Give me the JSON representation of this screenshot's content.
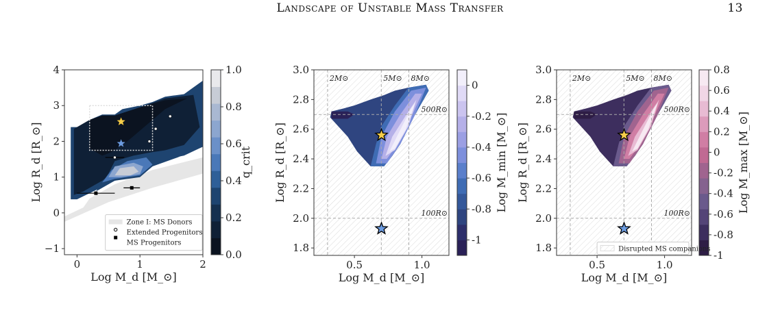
{
  "header": {
    "title": "Landscape of Unstable Mass Transfer",
    "page_number": "13"
  },
  "chart_data": [
    {
      "type": "contour",
      "xlabel": "Log M_d [M_⊙]",
      "ylabel": "Log R_d [R_⊙]",
      "xlim": [
        -0.2,
        2.0
      ],
      "ylim": [
        -1.17,
        4.0
      ],
      "xticks": [
        "0",
        "1",
        "2"
      ],
      "yticks": [
        "−1",
        "0",
        "1",
        "2",
        "3",
        "4"
      ],
      "colorbar": {
        "label": "q_crit",
        "ticks": [
          "0.0",
          "0.2",
          "0.4",
          "0.6",
          "0.8",
          "1.0"
        ],
        "range": [
          0.0,
          1.0
        ],
        "colors": [
          "#0b1320",
          "#0f2036",
          "#15304f",
          "#1e4470",
          "#2f5f98",
          "#4a78b8",
          "#6b90c8",
          "#8ca6cf",
          "#a9b8d2",
          "#c7ccd6",
          "#e9e9ec"
        ]
      },
      "legend": {
        "placement": "lower-right",
        "items": [
          "Zone I: MS Donors",
          "Extended Progenitors",
          "MS Progenitors"
        ]
      },
      "extended_progenitors": [
        {
          "x": 0.6,
          "y": 1.55,
          "xerr": 0.15
        },
        {
          "x": 1.15,
          "y": 2.0
        },
        {
          "x": 1.25,
          "y": 2.35
        },
        {
          "x": 1.48,
          "y": 2.7
        }
      ],
      "ms_progenitors": [
        {
          "x": 0.3,
          "y": 0.55,
          "xerr": 0.3
        },
        {
          "x": 0.87,
          "y": 0.7,
          "xerr": 0.13
        }
      ],
      "stars": [
        {
          "x": 0.7,
          "y": 2.55,
          "color": "#f5cd4a"
        },
        {
          "x": 0.7,
          "y": 1.94,
          "color": "#6b9be0"
        }
      ],
      "dotted_box": {
        "x": [
          0.2,
          1.2
        ],
        "y": [
          1.75,
          3.0
        ]
      }
    },
    {
      "type": "contour",
      "xlabel": "Log M_d [M_⊙]",
      "ylabel": "Log R_d [R_⊙]",
      "xlim": [
        0.2,
        1.2
      ],
      "ylim": [
        1.75,
        3.0
      ],
      "xticks": [
        "0.5",
        "1.0"
      ],
      "yticks": [
        "1.8",
        "2.0",
        "2.2",
        "2.4",
        "2.6",
        "2.8",
        "3.0"
      ],
      "colorbar": {
        "label": "Log M_min [M_⊙]",
        "ticks": [
          "-1",
          "-0.8",
          "-0.6",
          "-0.4",
          "-0.2",
          "0"
        ],
        "range": [
          -1.1,
          0.1
        ],
        "colors": [
          "#2a2157",
          "#2d2f6b",
          "#2f4580",
          "#34589a",
          "#3f6cb4",
          "#5a7fcb",
          "#7d8fdc",
          "#9b9fe3",
          "#b5b0e8",
          "#cbc4ef",
          "#e0daf6",
          "#f2effb"
        ]
      },
      "reference_lines": {
        "vertical": [
          {
            "x": 0.301,
            "label": "2M⊙"
          },
          {
            "x": 0.699,
            "label": "5M⊙"
          },
          {
            "x": 0.903,
            "label": "8M⊙"
          }
        ],
        "horizontal": [
          {
            "y": 2.699,
            "label": "500R⊙"
          },
          {
            "y": 2.0,
            "label": "100R⊙"
          }
        ]
      },
      "stars": [
        {
          "x": 0.7,
          "y": 2.56,
          "color": "#f5cd4a"
        },
        {
          "x": 0.7,
          "y": 1.93,
          "color": "#6b9be0"
        }
      ]
    },
    {
      "type": "contour",
      "xlabel": "Log M_d [M_⊙]",
      "ylabel": "Log R_d [R_⊙]",
      "xlim": [
        0.2,
        1.2
      ],
      "ylim": [
        1.75,
        3.0
      ],
      "xticks": [
        "0.5",
        "1.0"
      ],
      "yticks": [
        "1.8",
        "2.0",
        "2.2",
        "2.4",
        "2.6",
        "2.8",
        "3.0"
      ],
      "colorbar": {
        "label": "Log M_max [M_⊙]",
        "ticks": [
          "-1",
          "-0.8",
          "-0.6",
          "-0.4",
          "-0.2",
          "0",
          "0.2",
          "0.4",
          "0.6",
          "0.8"
        ],
        "range": [
          -1.0,
          0.8
        ],
        "colors": [
          "#2e1d45",
          "#3d2e5e",
          "#544477",
          "#6a5a8c",
          "#85628f",
          "#a0648f",
          "#c06a93",
          "#d07ea4",
          "#dc9bbb",
          "#e8bbd3",
          "#f1d6e6",
          "#f7e9f2"
        ]
      },
      "legend": {
        "placement": "lower-right",
        "items": [
          "Disrupted MS companions"
        ]
      },
      "reference_lines": {
        "vertical": [
          {
            "x": 0.301,
            "label": "2M⊙"
          },
          {
            "x": 0.699,
            "label": "5M⊙"
          },
          {
            "x": 0.903,
            "label": "8M⊙"
          }
        ],
        "horizontal": [
          {
            "y": 2.699,
            "label": "500R⊙"
          },
          {
            "y": 2.0,
            "label": "100R⊙"
          }
        ]
      },
      "stars": [
        {
          "x": 0.7,
          "y": 2.56,
          "color": "#f5cd4a"
        },
        {
          "x": 0.7,
          "y": 1.93,
          "color": "#6b9be0"
        }
      ]
    }
  ]
}
